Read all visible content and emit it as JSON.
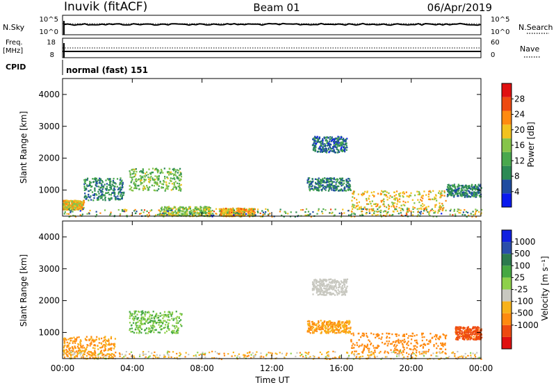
{
  "header": {
    "station": "Inuvik (fitACF)",
    "beam": "Beam 01",
    "date": "06/Apr/2019"
  },
  "nsky_panel": {
    "left_label": "N.Sky",
    "left_ticks": [
      "10^5",
      "10^0"
    ],
    "right_label": "N.Search",
    "right_ticks": [
      "10^5",
      "10^0"
    ]
  },
  "freq_panel": {
    "left_label_1": "Freq.",
    "left_label_2": "[MHz]",
    "left_ticks": [
      "18",
      "8"
    ],
    "right_label": "Nave",
    "right_ticks": [
      "60",
      "0"
    ]
  },
  "cpid": {
    "label": "CPID",
    "value": "normal (fast) 151"
  },
  "colors": {
    "power": [
      "#0a1aee",
      "#1e4ca0",
      "#2c8a55",
      "#49a84d",
      "#86c44a",
      "#f2c21e",
      "#ff8a10",
      "#ee4a10",
      "#e01010"
    ],
    "velocity": [
      "#e01010",
      "#ee4a10",
      "#ff8a10",
      "#f8b21a",
      "#c8c8c0",
      "#8ed04a",
      "#46a842",
      "#2c7a4e",
      "#2a4eaa",
      "#1020e0"
    ]
  },
  "chart_data": [
    {
      "type": "heatmap",
      "name": "power",
      "xlabel": "",
      "ylabel": "Slant Range [km]",
      "xlim": [
        0,
        24
      ],
      "ylim": [
        180,
        4500
      ],
      "y_ticks": [
        "1000",
        "2000",
        "3000",
        "4000"
      ],
      "colorbar": {
        "label": "Power [dB]",
        "range": [
          0,
          32
        ],
        "ticks": [
          "4",
          "8",
          "12",
          "16",
          "20",
          "24",
          "28"
        ]
      },
      "regions": [
        {
          "t": [
            0.0,
            1.2
          ],
          "r": [
            400,
            700
          ],
          "v": 22
        },
        {
          "t": [
            1.2,
            3.5
          ],
          "r": [
            700,
            1400
          ],
          "v": 10
        },
        {
          "t": [
            3.8,
            6.8
          ],
          "r": [
            1000,
            1700
          ],
          "v": 16
        },
        {
          "t": [
            5.5,
            8.5
          ],
          "r": [
            200,
            500
          ],
          "v": 18
        },
        {
          "t": [
            9.0,
            11.0
          ],
          "r": [
            200,
            450
          ],
          "v": 24
        },
        {
          "t": [
            14.3,
            16.3
          ],
          "r": [
            2200,
            2700
          ],
          "v": 8
        },
        {
          "t": [
            14.0,
            16.5
          ],
          "r": [
            1000,
            1400
          ],
          "v": 10
        },
        {
          "t": [
            16.5,
            22.0
          ],
          "r": [
            350,
            1000
          ],
          "v": 22
        },
        {
          "t": [
            22.0,
            24.0
          ],
          "r": [
            800,
            1200
          ],
          "v": 10
        }
      ]
    },
    {
      "type": "heatmap",
      "name": "velocity",
      "xlabel": "Time UT",
      "ylabel": "Slant Range [km]",
      "xlim": [
        0,
        24
      ],
      "ylim": [
        180,
        4500
      ],
      "x_ticks": [
        "00:00",
        "04:00",
        "08:00",
        "12:00",
        "16:00",
        "20:00",
        "00:00"
      ],
      "y_ticks": [
        "1000",
        "2000",
        "3000",
        "4000"
      ],
      "colorbar": {
        "label": "Velocity [m s⁻¹]",
        "ticks": [
          "1000",
          "500",
          "100",
          "25",
          "-25",
          "-100",
          "-500",
          "-1000"
        ]
      },
      "regions": [
        {
          "t": [
            0.0,
            3.0
          ],
          "r": [
            200,
            900
          ],
          "v": -100
        },
        {
          "t": [
            3.8,
            6.8
          ],
          "r": [
            1000,
            1700
          ],
          "v": 100
        },
        {
          "t": [
            14.3,
            16.3
          ],
          "r": [
            2200,
            2700
          ],
          "v": 0
        },
        {
          "t": [
            14.0,
            16.5
          ],
          "r": [
            1000,
            1400
          ],
          "v": -100
        },
        {
          "t": [
            16.5,
            22.0
          ],
          "r": [
            350,
            1000
          ],
          "v": -300
        },
        {
          "t": [
            22.5,
            24.0
          ],
          "r": [
            800,
            1200
          ],
          "v": -700
        }
      ]
    }
  ]
}
